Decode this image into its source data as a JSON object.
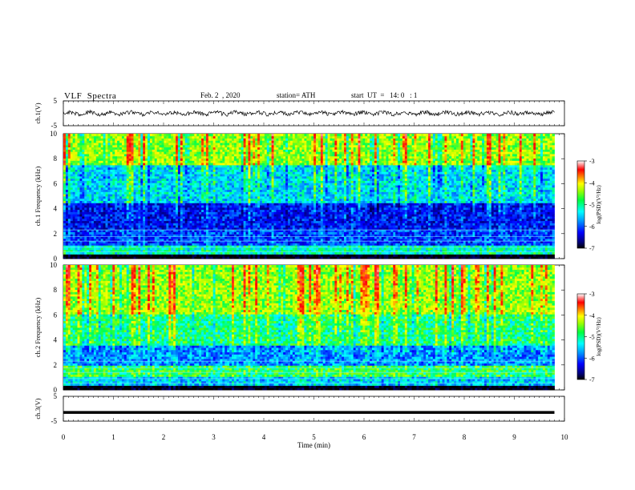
{
  "header": {
    "title": "VLF  Spectra",
    "date": "Feb. 2  , 2020",
    "station": "station= ATH",
    "start": "start  UT  =   14: 0   : 1"
  },
  "chart_data": [
    {
      "type": "line",
      "panel": "ch1-waveform",
      "ylabel": "ch.1(V)",
      "ylim": [
        -5,
        5
      ],
      "ytick_labels": [
        "5",
        "-5"
      ],
      "xlim": [
        0,
        10
      ],
      "x_end_min": 9.8,
      "approx_level_V": 0,
      "approx_jitter_V": 1
    },
    {
      "type": "heatmap",
      "panel": "ch1-spectrogram",
      "ylabel": "ch.1  Frequency  (kHz)",
      "ylim": [
        0,
        10
      ],
      "ytick_labels": [
        "0",
        "2",
        "4",
        "6",
        "8",
        "10"
      ],
      "xlim": [
        0,
        10
      ],
      "x_end_min": 9.8,
      "colorbar": {
        "label": "log(PSD)(V²/Hz)",
        "range": [
          -7,
          -3
        ],
        "tick_labels": [
          "-3",
          "-4",
          "-5",
          "-6",
          "-7"
        ]
      },
      "approx_log_psd_by_band_kHz": [
        {
          "band": [
            0,
            0.3
          ],
          "value": -7.5
        },
        {
          "band": [
            0.3,
            1.0
          ],
          "value": -5.5
        },
        {
          "band": [
            1.0,
            2.3
          ],
          "value": -6.3
        },
        {
          "band": [
            2.3,
            4.5
          ],
          "value": -6.5
        },
        {
          "band": [
            4.5,
            7.5
          ],
          "value": -5.7
        },
        {
          "band": [
            7.5,
            10
          ],
          "value": -4.8
        }
      ]
    },
    {
      "type": "heatmap",
      "panel": "ch2-spectrogram",
      "ylabel": "ch.2  Frequency  (kHz)",
      "ylim": [
        0,
        10
      ],
      "ytick_labels": [
        "0",
        "2",
        "4",
        "6",
        "8",
        "10"
      ],
      "xlim": [
        0,
        10
      ],
      "x_end_min": 9.8,
      "colorbar": {
        "label": "log(PSD)(V²/Hz)",
        "range": [
          -7,
          -3
        ],
        "tick_labels": [
          "-3",
          "-4",
          "-5",
          "-6",
          "-7"
        ]
      },
      "approx_log_psd_by_band_kHz": [
        {
          "band": [
            0,
            0.3
          ],
          "value": -7.5
        },
        {
          "band": [
            0.3,
            1.0
          ],
          "value": -5.8
        },
        {
          "band": [
            1.0,
            2.0
          ],
          "value": -5.2
        },
        {
          "band": [
            2.0,
            3.5
          ],
          "value": -6.0
        },
        {
          "band": [
            3.5,
            6.0
          ],
          "value": -5.3
        },
        {
          "band": [
            6.0,
            10
          ],
          "value": -4.8
        }
      ]
    },
    {
      "type": "line",
      "panel": "ch3-waveform",
      "ylabel": "ch.3(V)",
      "ylim": [
        -5,
        5
      ],
      "ytick_labels": [
        "5",
        "-5"
      ],
      "xlim": [
        0,
        10
      ],
      "x_end_min": 9.8,
      "approx_level_V": -1.5,
      "xlabel": "Time  (min)",
      "xtick_labels": [
        "0",
        "1",
        "2",
        "3",
        "4",
        "5",
        "6",
        "7",
        "8",
        "9",
        "10"
      ]
    }
  ]
}
